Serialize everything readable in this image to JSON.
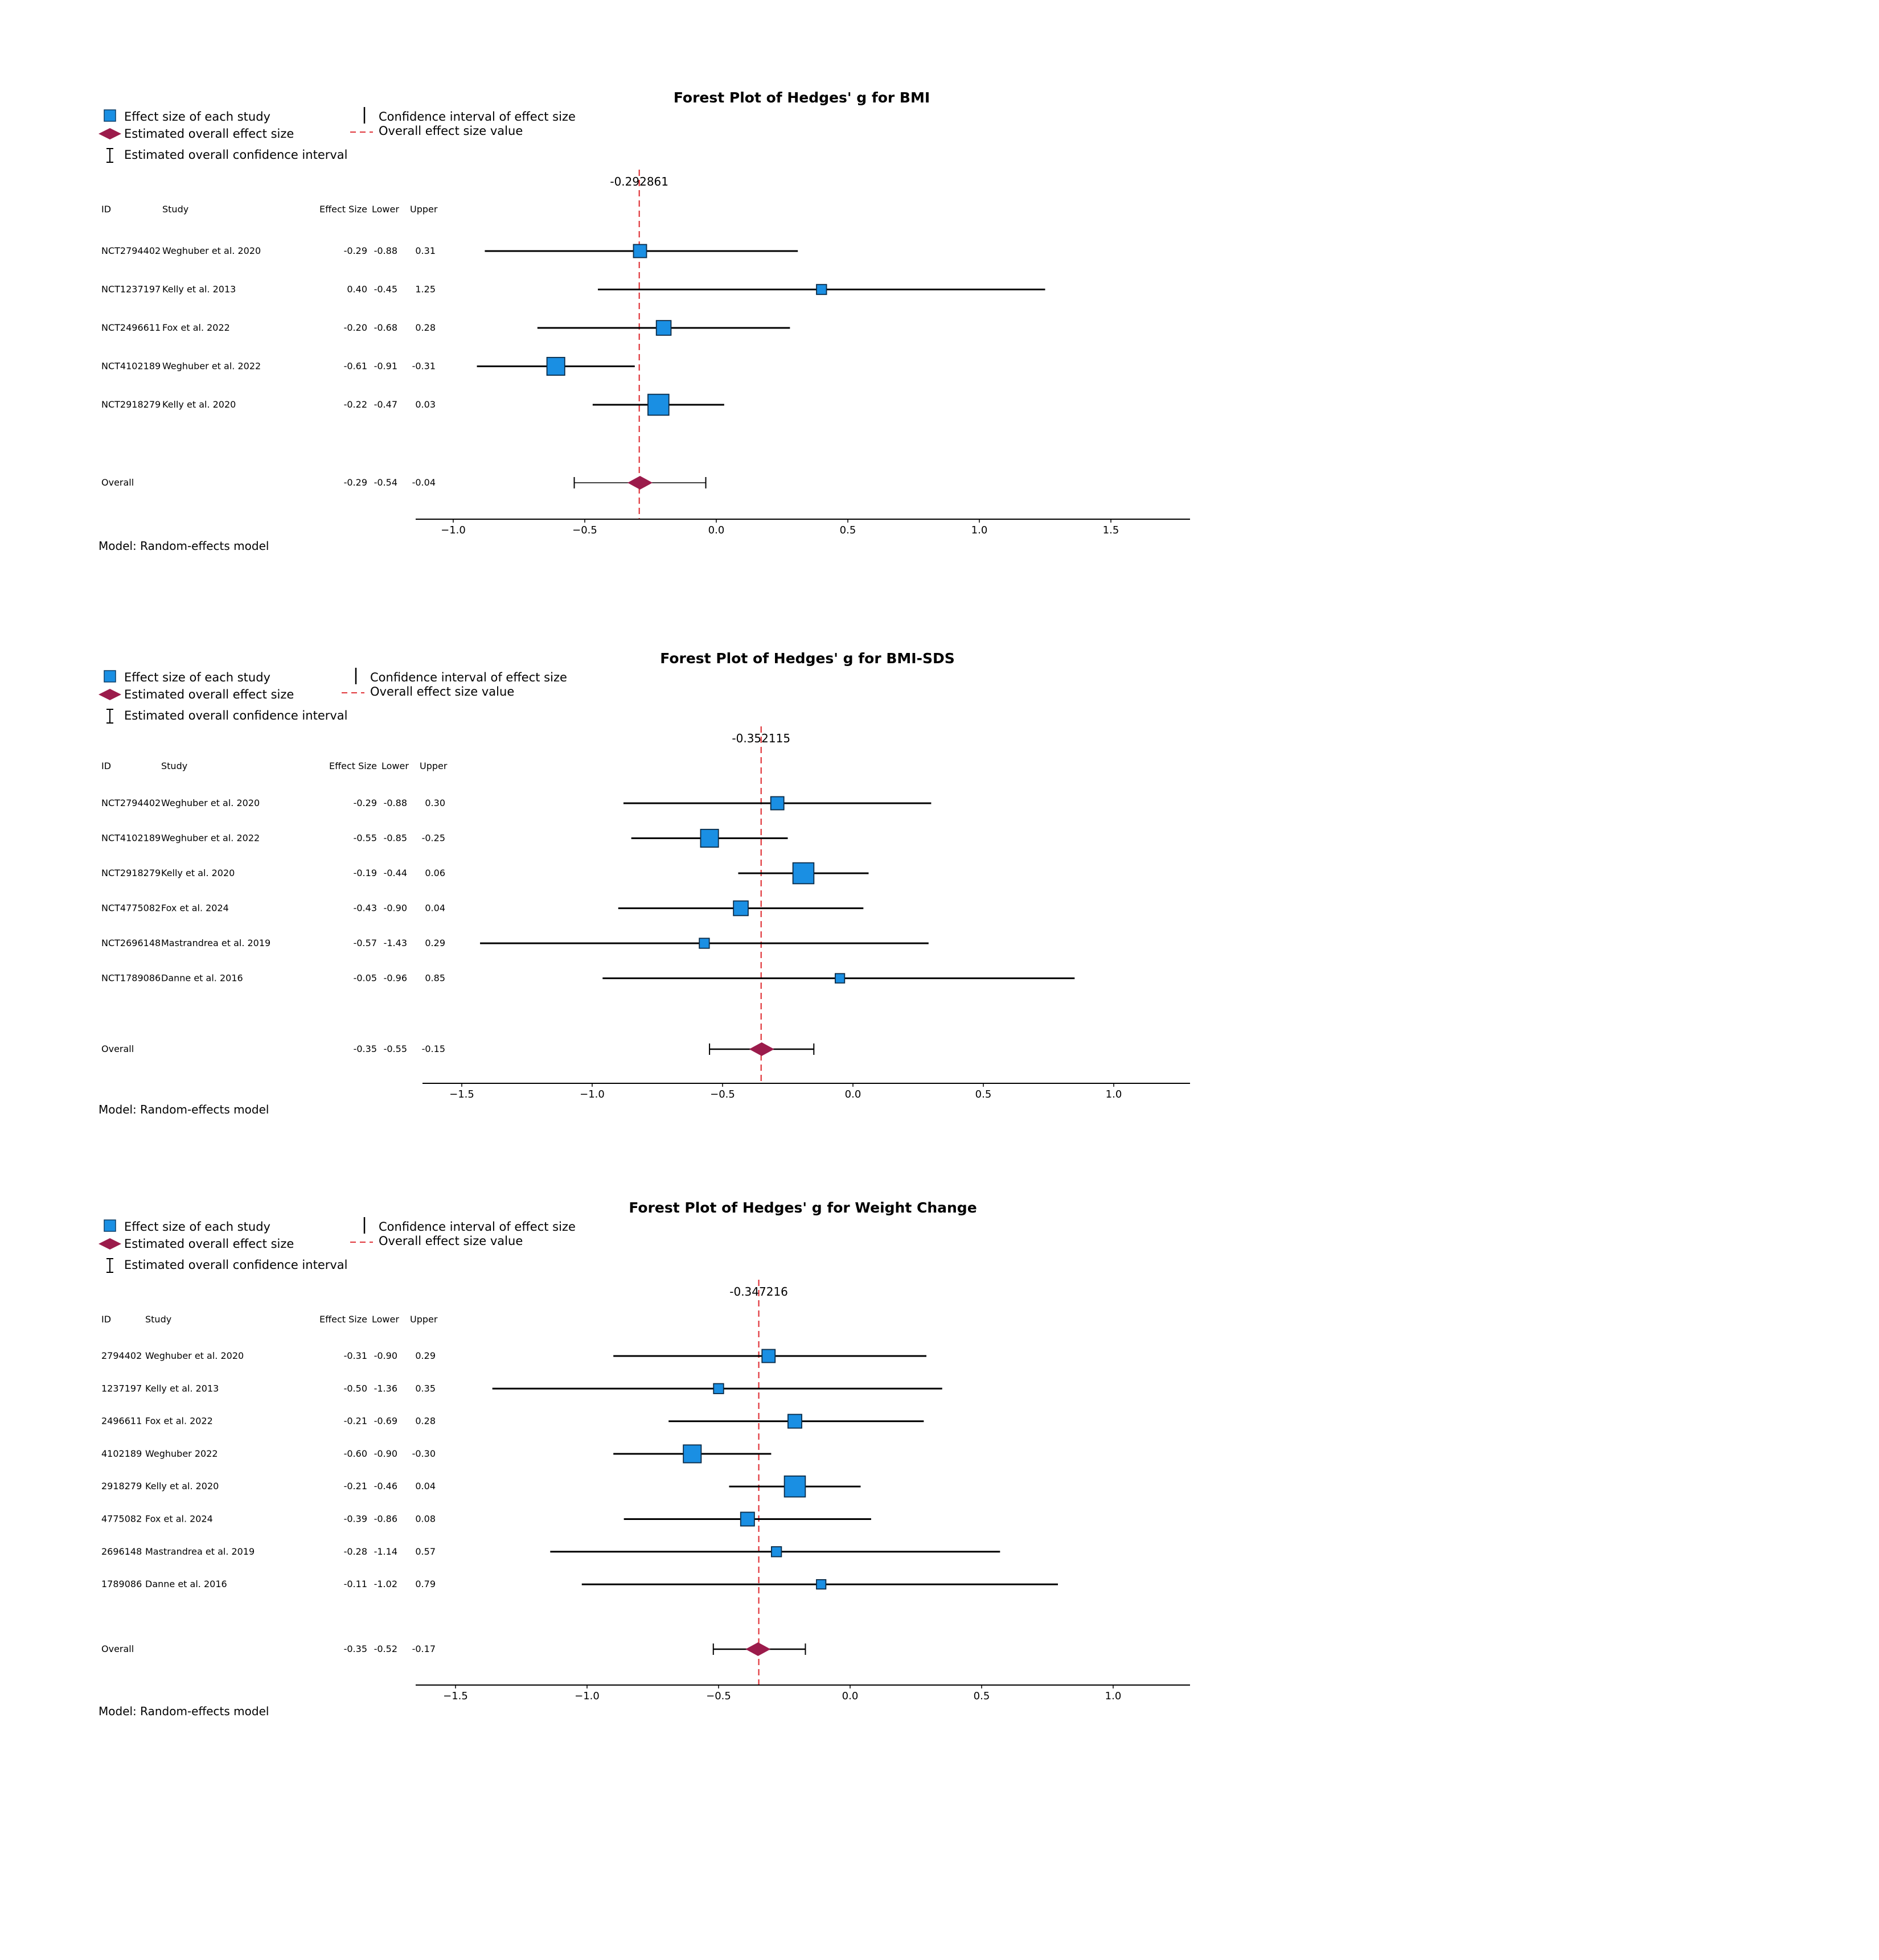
{
  "legend": {
    "study": "Effect size of each study",
    "overall": "Estimated overall effect size",
    "overall_ci": "Estimated overall confidence interval",
    "ci": "Confidence interval of effect size",
    "overall_line": "Overall effect size value"
  },
  "colors": {
    "study_box": "#1a8fe3",
    "overall_diamond": "#9b1b4b",
    "overall_line": "#e0353a",
    "ink": "#000000"
  },
  "chart_data": [
    {
      "type": "forest",
      "title": "Forest Plot of Hedges' g for BMI",
      "overall_label": "-0.292861",
      "overall_value": -0.292861,
      "columns": [
        "ID",
        "Study",
        "Effect Size",
        "Lower",
        "Upper"
      ],
      "xlim": [
        -1.1,
        1.8
      ],
      "ticks": [
        -1.0,
        -0.5,
        0.0,
        0.5,
        1.0,
        1.5
      ],
      "tick_labels": [
        "−1.0",
        "−0.5",
        "0.0",
        "0.5",
        "1.0",
        "1.5"
      ],
      "rows": [
        {
          "id": "NCT2794402",
          "study": "Weghuber et al. 2020",
          "es": "-0.29",
          "lo": "-0.88",
          "hi": "0.31",
          "value": -0.29,
          "lower": -0.88,
          "upper": 0.31,
          "weight": 0.2
        },
        {
          "id": "NCT1237197",
          "study": "Kelly et al. 2013",
          "es": "0.40",
          "lo": "-0.45",
          "hi": "1.25",
          "value": 0.4,
          "lower": -0.45,
          "upper": 1.25,
          "weight": 0.1
        },
        {
          "id": "NCT2496611",
          "study": "Fox et al. 2022",
          "es": "-0.20",
          "lo": "-0.68",
          "hi": "0.28",
          "value": -0.2,
          "lower": -0.68,
          "upper": 0.28,
          "weight": 0.25
        },
        {
          "id": "NCT4102189",
          "study": "Weghuber et al. 2022",
          "es": "-0.61",
          "lo": "-0.91",
          "hi": "-0.31",
          "value": -0.61,
          "lower": -0.91,
          "upper": -0.31,
          "weight": 0.35
        },
        {
          "id": "NCT2918279",
          "study": "Kelly et al. 2020",
          "es": "-0.22",
          "lo": "-0.47",
          "hi": "0.03",
          "value": -0.22,
          "lower": -0.47,
          "upper": 0.03,
          "weight": 0.45
        }
      ],
      "overall": {
        "label": "Overall",
        "es": "-0.29",
        "lo": "-0.54",
        "hi": "-0.04",
        "value": -0.29,
        "lower": -0.54,
        "upper": -0.04
      },
      "model": "Model: Random-effects model"
    },
    {
      "type": "forest",
      "title": "Forest Plot of Hedges' g for BMI-SDS",
      "overall_label": "-0.352115",
      "overall_value": -0.352115,
      "columns": [
        "ID",
        "Study",
        "Effect Size",
        "Lower",
        "Upper"
      ],
      "xlim": [
        -1.65,
        1.3
      ],
      "ticks": [
        -1.5,
        -1.0,
        -0.5,
        0.0,
        0.5,
        1.0
      ],
      "tick_labels": [
        "−1.5",
        "−1.0",
        "−0.5",
        "0.0",
        "0.5",
        "1.0"
      ],
      "rows": [
        {
          "id": "NCT2794402",
          "study": "Weghuber et al. 2020",
          "es": "-0.29",
          "lo": "-0.88",
          "hi": "0.30",
          "value": -0.29,
          "lower": -0.88,
          "upper": 0.3,
          "weight": 0.2
        },
        {
          "id": "NCT4102189",
          "study": "Weghuber et al. 2022",
          "es": "-0.55",
          "lo": "-0.85",
          "hi": "-0.25",
          "value": -0.55,
          "lower": -0.85,
          "upper": -0.25,
          "weight": 0.35
        },
        {
          "id": "NCT2918279",
          "study": "Kelly et al. 2020",
          "es": "-0.19",
          "lo": "-0.44",
          "hi": "0.06",
          "value": -0.19,
          "lower": -0.44,
          "upper": 0.06,
          "weight": 0.45
        },
        {
          "id": "NCT4775082",
          "study": "Fox et al. 2024",
          "es": "-0.43",
          "lo": "-0.90",
          "hi": "0.04",
          "value": -0.43,
          "lower": -0.9,
          "upper": 0.04,
          "weight": 0.25
        },
        {
          "id": "NCT2696148",
          "study": "Mastrandrea et al. 2019",
          "es": "-0.57",
          "lo": "-1.43",
          "hi": "0.29",
          "value": -0.57,
          "lower": -1.43,
          "upper": 0.29,
          "weight": 0.1
        },
        {
          "id": "NCT1789086",
          "study": "Danne et al. 2016",
          "es": "-0.05",
          "lo": "-0.96",
          "hi": "0.85",
          "value": -0.05,
          "lower": -0.96,
          "upper": 0.85,
          "weight": 0.08
        }
      ],
      "overall": {
        "label": "Overall",
        "es": "-0.35",
        "lo": "-0.55",
        "hi": "-0.15",
        "value": -0.35,
        "lower": -0.55,
        "upper": -0.15
      },
      "model": "Model: Random-effects model"
    },
    {
      "type": "forest",
      "title": "Forest Plot of Hedges' g for Weight Change",
      "overall_label": "-0.347216",
      "overall_value": -0.347216,
      "columns": [
        "ID",
        "Study",
        "Effect Size",
        "Lower",
        "Upper"
      ],
      "xlim": [
        -1.65,
        1.3
      ],
      "ticks": [
        -1.5,
        -1.0,
        -0.5,
        0.0,
        0.5,
        1.0
      ],
      "tick_labels": [
        "−1.5",
        "−1.0",
        "−0.5",
        "0.0",
        "0.5",
        "1.0"
      ],
      "rows": [
        {
          "id": "2794402",
          "study": "Weghuber et al. 2020",
          "es": "-0.31",
          "lo": "-0.90",
          "hi": "0.29",
          "value": -0.31,
          "lower": -0.9,
          "upper": 0.29,
          "weight": 0.2
        },
        {
          "id": "1237197",
          "study": "Kelly et al. 2013",
          "es": "-0.50",
          "lo": "-1.36",
          "hi": "0.35",
          "value": -0.5,
          "lower": -1.36,
          "upper": 0.35,
          "weight": 0.1
        },
        {
          "id": "2496611",
          "study": "Fox et al. 2022",
          "es": "-0.21",
          "lo": "-0.69",
          "hi": "0.28",
          "value": -0.21,
          "lower": -0.69,
          "upper": 0.28,
          "weight": 0.22
        },
        {
          "id": "4102189",
          "study": "Weghuber 2022",
          "es": "-0.60",
          "lo": "-0.90",
          "hi": "-0.30",
          "value": -0.6,
          "lower": -0.9,
          "upper": -0.3,
          "weight": 0.35
        },
        {
          "id": "2918279",
          "study": "Kelly et al. 2020",
          "es": "-0.21",
          "lo": "-0.46",
          "hi": "0.04",
          "value": -0.21,
          "lower": -0.46,
          "upper": 0.04,
          "weight": 0.45
        },
        {
          "id": "4775082",
          "study": "Fox et al. 2024",
          "es": "-0.39",
          "lo": "-0.86",
          "hi": "0.08",
          "value": -0.39,
          "lower": -0.86,
          "upper": 0.08,
          "weight": 0.22
        },
        {
          "id": "2696148",
          "study": "Mastrandrea et al. 2019",
          "es": "-0.28",
          "lo": "-1.14",
          "hi": "0.57",
          "value": -0.28,
          "lower": -1.14,
          "upper": 0.57,
          "weight": 0.1
        },
        {
          "id": "1789086",
          "study": "Danne et al. 2016",
          "es": "-0.11",
          "lo": "-1.02",
          "hi": "0.79",
          "value": -0.11,
          "lower": -1.02,
          "upper": 0.79,
          "weight": 0.08
        }
      ],
      "overall": {
        "label": "Overall",
        "es": "-0.35",
        "lo": "-0.52",
        "hi": "-0.17",
        "value": -0.35,
        "lower": -0.52,
        "upper": -0.17
      },
      "model": "Model: Random-effects model"
    }
  ]
}
